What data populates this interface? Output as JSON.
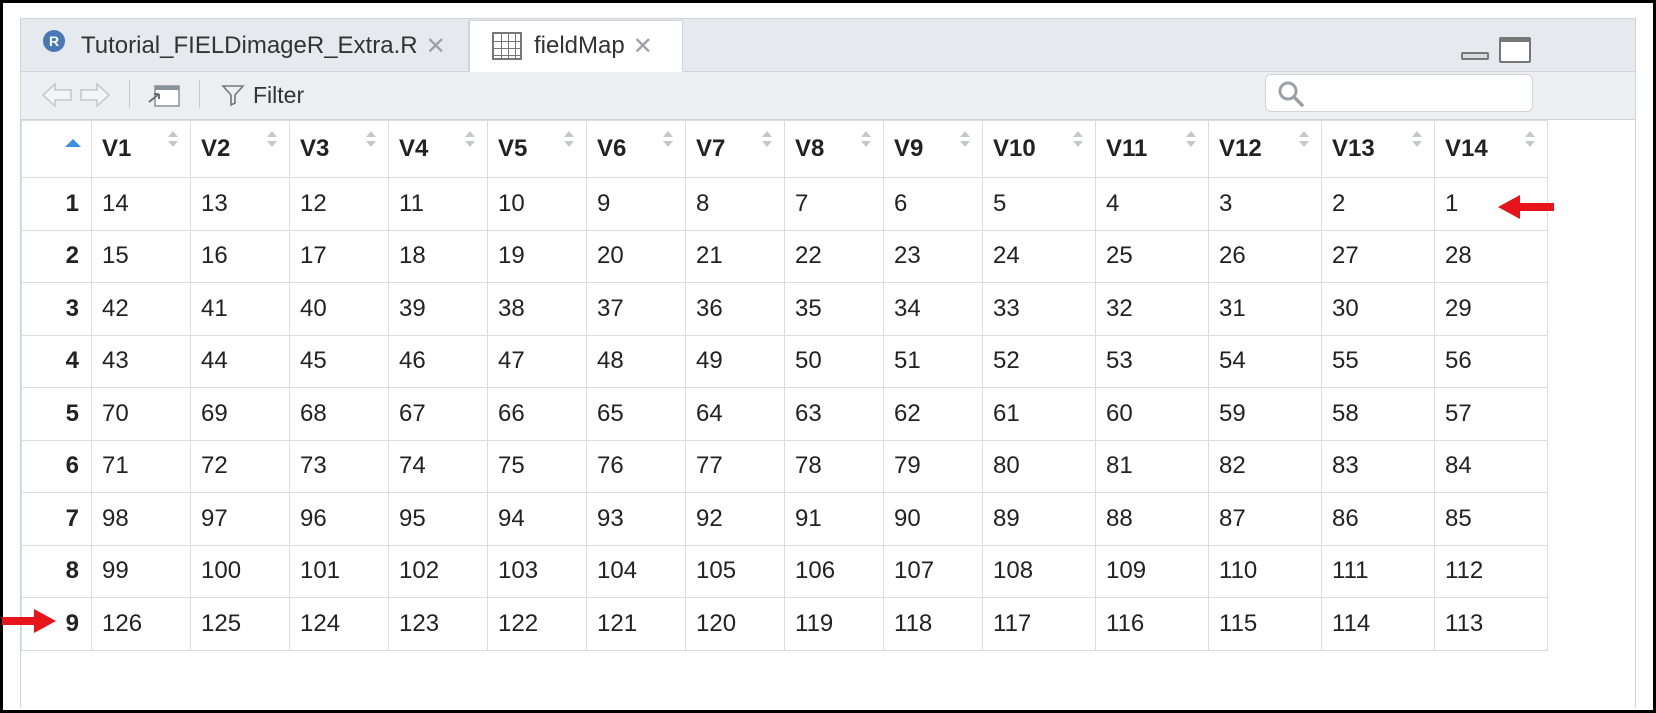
{
  "tabs": [
    {
      "label": "Tutorial_FIELDimageR_Extra.R",
      "icon": "r-script-icon",
      "active": false
    },
    {
      "label": "fieldMap",
      "icon": "data-grid-icon",
      "active": true
    }
  ],
  "close_glyph": "✕",
  "toolbar": {
    "filter_label": "Filter",
    "search_placeholder": ""
  },
  "table": {
    "columns": [
      "V1",
      "V2",
      "V3",
      "V4",
      "V5",
      "V6",
      "V7",
      "V8",
      "V9",
      "V10",
      "V11",
      "V12",
      "V13",
      "V14"
    ],
    "rows": [
      {
        "n": "1",
        "values": [
          "14",
          "13",
          "12",
          "11",
          "10",
          "9",
          "8",
          "7",
          "6",
          "5",
          "4",
          "3",
          "2",
          "1"
        ]
      },
      {
        "n": "2",
        "values": [
          "15",
          "16",
          "17",
          "18",
          "19",
          "20",
          "21",
          "22",
          "23",
          "24",
          "25",
          "26",
          "27",
          "28"
        ]
      },
      {
        "n": "3",
        "values": [
          "42",
          "41",
          "40",
          "39",
          "38",
          "37",
          "36",
          "35",
          "34",
          "33",
          "32",
          "31",
          "30",
          "29"
        ]
      },
      {
        "n": "4",
        "values": [
          "43",
          "44",
          "45",
          "46",
          "47",
          "48",
          "49",
          "50",
          "51",
          "52",
          "53",
          "54",
          "55",
          "56"
        ]
      },
      {
        "n": "5",
        "values": [
          "70",
          "69",
          "68",
          "67",
          "66",
          "65",
          "64",
          "63",
          "62",
          "61",
          "60",
          "59",
          "58",
          "57"
        ]
      },
      {
        "n": "6",
        "values": [
          "71",
          "72",
          "73",
          "74",
          "75",
          "76",
          "77",
          "78",
          "79",
          "80",
          "81",
          "82",
          "83",
          "84"
        ]
      },
      {
        "n": "7",
        "values": [
          "98",
          "97",
          "96",
          "95",
          "94",
          "93",
          "92",
          "91",
          "90",
          "89",
          "88",
          "87",
          "86",
          "85"
        ]
      },
      {
        "n": "8",
        "values": [
          "99",
          "100",
          "101",
          "102",
          "103",
          "104",
          "105",
          "106",
          "107",
          "108",
          "109",
          "110",
          "111",
          "112"
        ]
      },
      {
        "n": "9",
        "values": [
          "126",
          "125",
          "124",
          "123",
          "122",
          "121",
          "120",
          "119",
          "118",
          "117",
          "116",
          "115",
          "114",
          "113"
        ]
      }
    ]
  },
  "annotations": {
    "arrow_color": "#e8141b"
  },
  "colors": {
    "sort_active": "#3b8ee0",
    "tab_bar": "#e6e9ed"
  }
}
